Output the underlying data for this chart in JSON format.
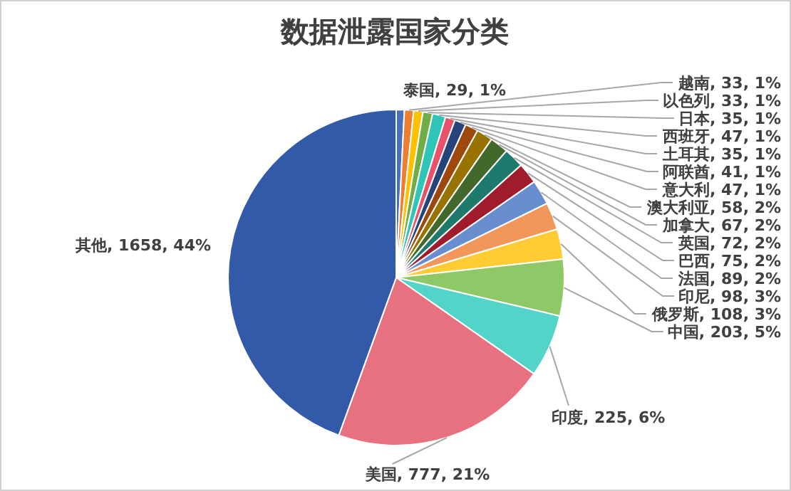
{
  "chart_data": {
    "type": "pie",
    "title": "数据泄露国家分类",
    "categories": [
      "泰国",
      "越南",
      "以色列",
      "日本",
      "西班牙",
      "土耳其",
      "阿联酋",
      "意大利",
      "澳大利亚",
      "加拿大",
      "英国",
      "巴西",
      "法国",
      "印尼",
      "俄罗斯",
      "中国",
      "印度",
      "美国",
      "其他"
    ],
    "values": [
      29,
      33,
      33,
      35,
      47,
      35,
      41,
      47,
      58,
      67,
      72,
      75,
      89,
      98,
      108,
      203,
      225,
      777,
      1658
    ],
    "value_labels": [
      "29, 1%",
      "33, 1%",
      "33, 1%",
      "35, 1%",
      "47, 1%",
      "35, 1%",
      "41, 1%",
      "47, 1%",
      "58, 2%",
      "67, 2%",
      "72, 2%",
      "75, 2%",
      "89, 2%",
      "98, 3%",
      "108, 3%",
      "203, 5%",
      "225, 6%",
      "777, 21%",
      "1658, 44%"
    ],
    "colors": [
      "#4a6fc0",
      "#ed7d31",
      "#ffc000",
      "#70ad47",
      "#2ec4b6",
      "#e8536b",
      "#264478",
      "#9e480e",
      "#997300",
      "#43682b",
      "#1f7a6e",
      "#a01c2c",
      "#698ed0",
      "#f1975a",
      "#ffcd33",
      "#8fc866",
      "#52d4c8",
      "#e8717f",
      "#325aa8"
    ],
    "legend": false
  }
}
